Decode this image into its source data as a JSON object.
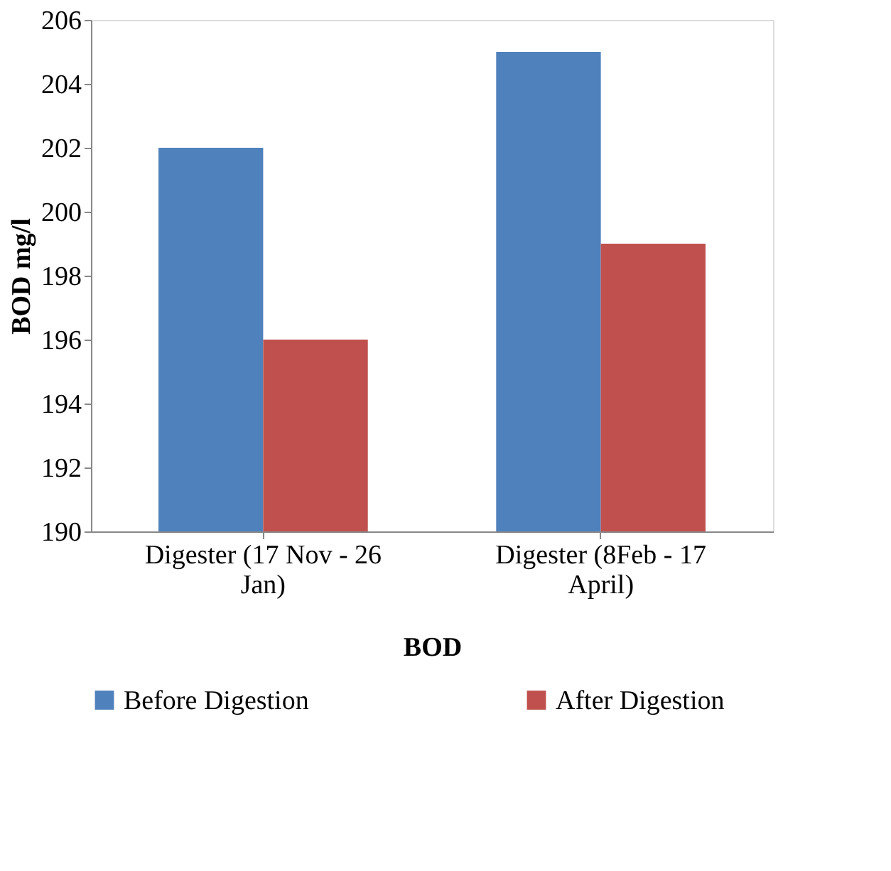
{
  "chart_data": {
    "type": "bar",
    "xlabel": "BOD",
    "ylabel": "BOD mg/l",
    "categories": [
      "Digester (17 Nov - 26 Jan)",
      "Digester (8Feb - 17 April)"
    ],
    "series": [
      {
        "name": "Before Digestion",
        "color": "#4f81bd",
        "values": [
          202,
          205
        ]
      },
      {
        "name": "After Digestion",
        "color": "#c0504d",
        "values": [
          196,
          199
        ]
      }
    ],
    "ylim": [
      190,
      206
    ],
    "yticks": [
      190,
      192,
      194,
      196,
      198,
      200,
      202,
      204,
      206
    ],
    "grid": false,
    "legend": "bottom"
  }
}
